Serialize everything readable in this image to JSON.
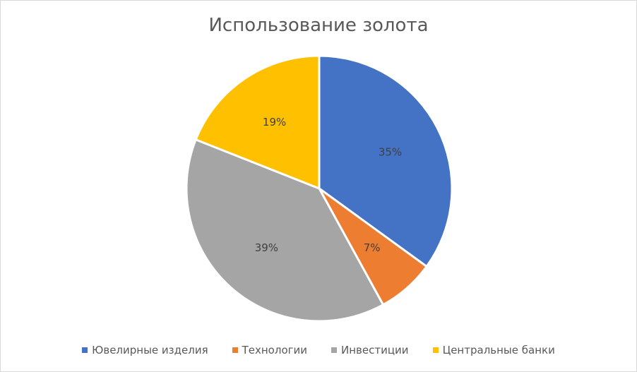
{
  "chart_data": {
    "type": "pie",
    "title": "Использование золота",
    "categories": [
      "Ювелирные изделия",
      "Технологии",
      "Инвестиции",
      "Центральные банки"
    ],
    "values": [
      35,
      7,
      39,
      19
    ],
    "labels": [
      "35%",
      "7%",
      "39%",
      "19%"
    ],
    "colors": [
      "#4472c4",
      "#ed7d31",
      "#a5a5a5",
      "#ffc000"
    ],
    "legend_position": "bottom"
  }
}
